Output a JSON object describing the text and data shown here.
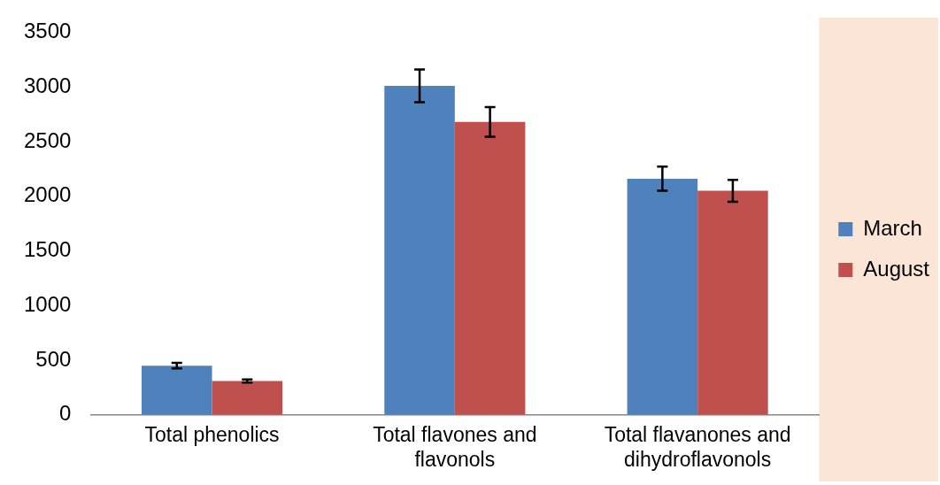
{
  "chart_data": {
    "type": "bar",
    "categories": [
      "Total phenolics",
      "Total flavones and flavonols",
      "Total flavanones and dihydroflavonols"
    ],
    "series": [
      {
        "name": "March",
        "color": "#4f81bd",
        "values": [
          450,
          3010,
          2160
        ],
        "errors": [
          25,
          150,
          110
        ]
      },
      {
        "name": "August",
        "color": "#c0504d",
        "values": [
          310,
          2680,
          2050
        ],
        "errors": [
          15,
          135,
          100
        ]
      }
    ],
    "ylim": [
      0,
      3500
    ],
    "yticks": [
      0,
      500,
      1000,
      1500,
      2000,
      2500,
      3000,
      3500
    ],
    "grid": false,
    "legend": "right"
  }
}
